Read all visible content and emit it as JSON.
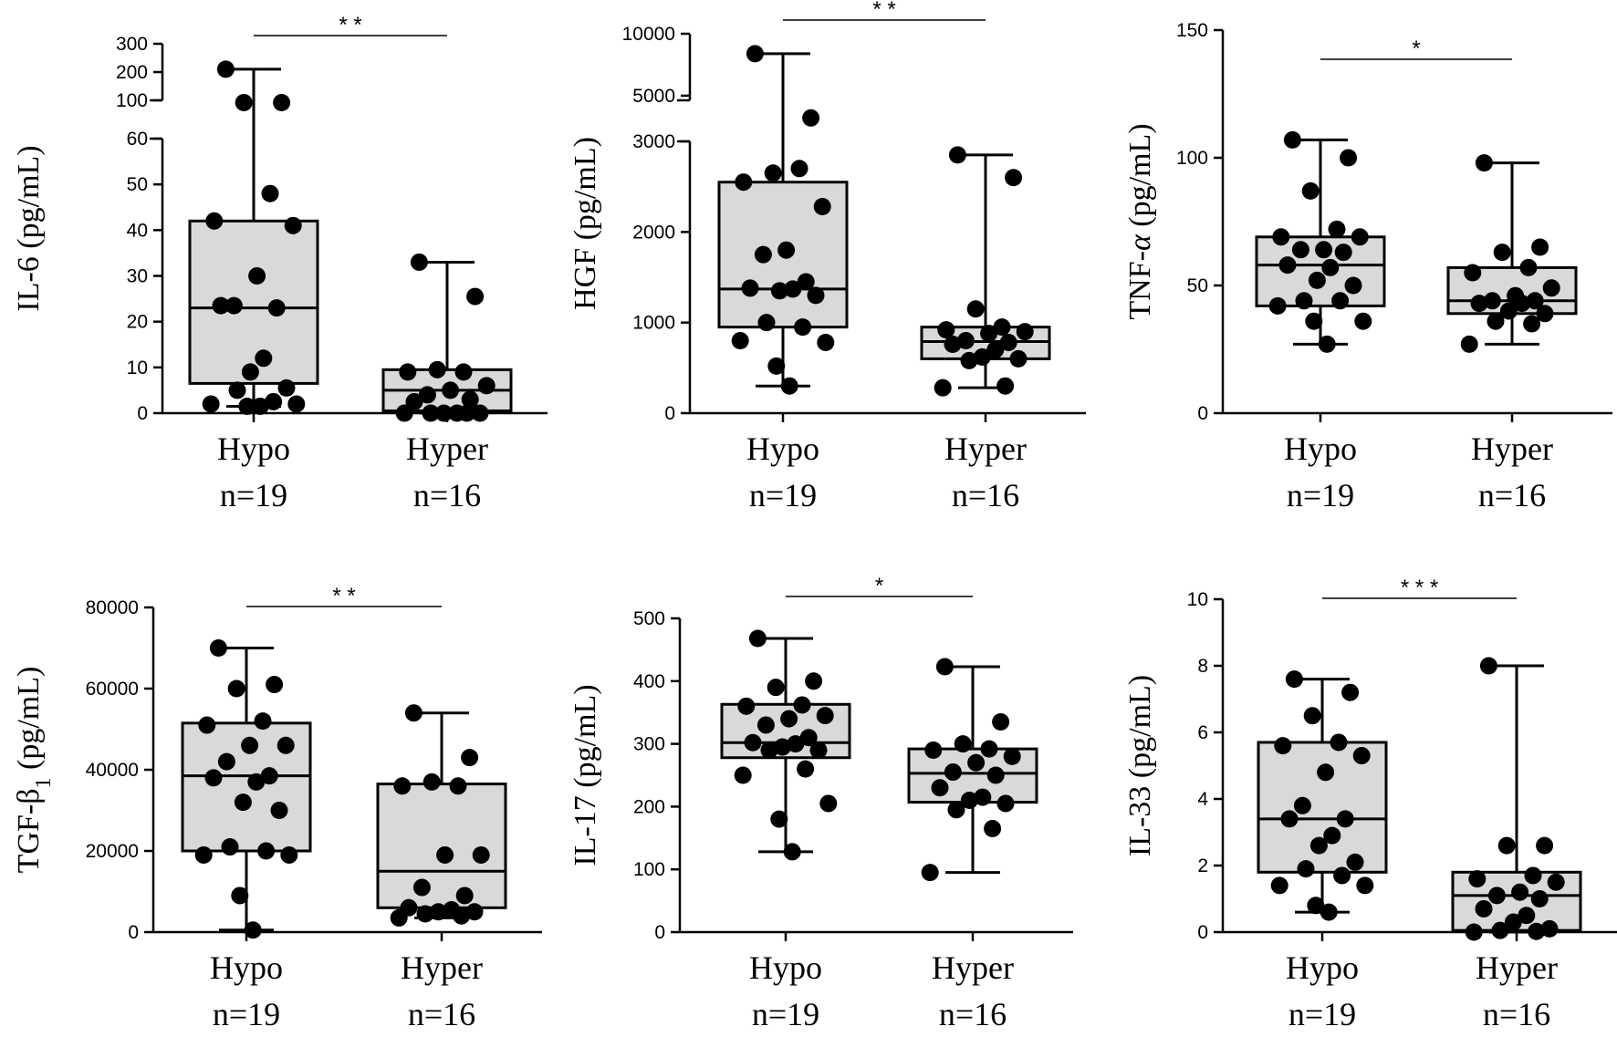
{
  "chart_data": [
    {
      "type": "box",
      "ylabel": "IL-6 (pg/mL)",
      "categories": [
        "Hypo",
        "Hyper"
      ],
      "n_labels": [
        "n=19",
        "n=16"
      ],
      "axis_break": {
        "lower_range": [
          0,
          60
        ],
        "upper_range": [
          100,
          300
        ]
      },
      "lower_ticks": [
        0,
        10,
        20,
        30,
        40,
        50,
        60
      ],
      "upper_ticks": [
        100,
        200,
        300
      ],
      "significance": "* *",
      "groups": [
        {
          "name": "Hypo",
          "min": 1.5,
          "q1": 6.5,
          "median": 23,
          "q3": 42,
          "max": 210,
          "points": [
            210,
            85,
            80,
            48,
            42,
            41,
            30,
            23.5,
            23,
            23.5,
            12,
            9,
            5.5,
            5,
            2.5,
            2,
            2,
            1.5,
            1.5
          ]
        },
        {
          "name": "Hyper",
          "min": 0,
          "q1": 0.5,
          "median": 5,
          "q3": 9.5,
          "max": 33,
          "points": [
            33,
            25.5,
            9.5,
            9,
            9,
            6,
            5,
            4,
            3,
            2.5,
            0,
            0,
            0,
            0,
            0,
            0
          ]
        }
      ]
    },
    {
      "type": "box",
      "ylabel": "HGF (pg/mL)",
      "categories": [
        "Hypo",
        "Hyper"
      ],
      "n_labels": [
        "n=19",
        "n=16"
      ],
      "axis_break": {
        "lower_range": [
          0,
          3000
        ],
        "upper_range": [
          3000,
          10000
        ]
      },
      "lower_ticks": [
        0,
        1000,
        2000,
        3000
      ],
      "upper_ticks": [
        5000,
        10000
      ],
      "significance": "* *",
      "groups": [
        {
          "name": "Hypo",
          "min": 300,
          "q1": 950,
          "median": 1370,
          "q3": 2550,
          "max": 8000,
          "points": [
            8000,
            3900,
            2650,
            2700,
            2550,
            2280,
            1800,
            1750,
            1450,
            1380,
            1370,
            1350,
            1300,
            1000,
            950,
            800,
            780,
            520,
            300
          ]
        },
        {
          "name": "Hyper",
          "min": 280,
          "q1": 600,
          "median": 790,
          "q3": 950,
          "max": 2850,
          "points": [
            2850,
            2600,
            1150,
            950,
            920,
            900,
            880,
            800,
            780,
            760,
            700,
            620,
            600,
            580,
            300,
            280
          ]
        }
      ]
    },
    {
      "type": "box",
      "ylabel": "TNF-α (pg/mL)",
      "categories": [
        "Hypo",
        "Hyper"
      ],
      "n_labels": [
        "n=19",
        "n=16"
      ],
      "ylim": [
        0,
        150
      ],
      "ticks": [
        0,
        50,
        100,
        150
      ],
      "significance": "*",
      "groups": [
        {
          "name": "Hypo",
          "min": 27,
          "q1": 42,
          "median": 58,
          "q3": 69,
          "max": 107,
          "points": [
            107,
            100,
            87,
            72,
            69,
            69,
            64,
            64,
            63,
            58,
            57,
            52,
            50,
            44,
            44,
            42,
            36,
            36,
            27
          ]
        },
        {
          "name": "Hyper",
          "min": 27,
          "q1": 39,
          "median": 44,
          "q3": 57,
          "max": 98,
          "points": [
            98,
            65,
            63,
            57,
            55,
            49,
            46,
            44,
            44,
            43,
            43,
            40,
            39,
            36,
            35,
            27
          ]
        }
      ]
    },
    {
      "type": "box",
      "ylabel": "TGF-β1 (pg/mL)",
      "categories": [
        "Hypo",
        "Hyper"
      ],
      "n_labels": [
        "n=19",
        "n=16"
      ],
      "ylim": [
        0,
        80000
      ],
      "ticks": [
        0,
        20000,
        40000,
        60000,
        80000
      ],
      "significance": "* *",
      "groups": [
        {
          "name": "Hypo",
          "min": 500,
          "q1": 20000,
          "median": 38500,
          "q3": 51500,
          "max": 70000,
          "points": [
            70000,
            61000,
            60000,
            52000,
            51000,
            46000,
            46000,
            42000,
            38500,
            38000,
            37000,
            32000,
            30000,
            21000,
            20000,
            19000,
            19000,
            9000,
            500
          ]
        },
        {
          "name": "Hyper",
          "min": 3500,
          "q1": 6000,
          "median": 15000,
          "q3": 36500,
          "max": 54000,
          "points": [
            54000,
            43000,
            37000,
            36000,
            36000,
            19000,
            19000,
            11000,
            9000,
            6000,
            5500,
            5000,
            5000,
            4500,
            4000,
            3500
          ]
        }
      ]
    },
    {
      "type": "box",
      "ylabel": "IL-17 (pg/mL)",
      "categories": [
        "Hypo",
        "Hyper"
      ],
      "n_labels": [
        "n=19",
        "n=16"
      ],
      "ylim": [
        0,
        500
      ],
      "ticks": [
        0,
        100,
        200,
        300,
        400,
        500
      ],
      "significance": "*",
      "groups": [
        {
          "name": "Hypo",
          "min": 128,
          "q1": 278,
          "median": 302,
          "q3": 363,
          "max": 468,
          "points": [
            468,
            400,
            390,
            362,
            360,
            345,
            340,
            330,
            310,
            302,
            300,
            295,
            290,
            290,
            260,
            250,
            205,
            180,
            128
          ]
        },
        {
          "name": "Hyper",
          "min": 95,
          "q1": 207,
          "median": 253,
          "q3": 292,
          "max": 423,
          "points": [
            423,
            335,
            300,
            292,
            290,
            280,
            270,
            255,
            250,
            230,
            215,
            210,
            205,
            195,
            165,
            95
          ]
        }
      ]
    },
    {
      "type": "box",
      "ylabel": "IL-33 (pg/mL)",
      "categories": [
        "Hypo",
        "Hyper"
      ],
      "n_labels": [
        "n=19",
        "n=16"
      ],
      "ylim": [
        0,
        10
      ],
      "ticks": [
        0,
        2,
        4,
        6,
        8,
        10
      ],
      "significance": "* * *",
      "groups": [
        {
          "name": "Hypo",
          "min": 0.6,
          "q1": 1.8,
          "median": 3.4,
          "q3": 5.7,
          "max": 7.6,
          "points": [
            7.6,
            7.2,
            6.5,
            5.7,
            5.6,
            5.3,
            4.8,
            3.8,
            3.4,
            3.4,
            2.9,
            2.6,
            2.1,
            1.9,
            1.7,
            1.4,
            1.4,
            0.8,
            0.6
          ]
        },
        {
          "name": "Hyper",
          "min": 0,
          "q1": 0.05,
          "median": 1.1,
          "q3": 1.8,
          "max": 8,
          "points": [
            8,
            2.6,
            2.6,
            1.7,
            1.6,
            1.5,
            1.2,
            1.1,
            1.0,
            0.7,
            0.5,
            0.3,
            0.1,
            0.05,
            0.02,
            0
          ]
        }
      ]
    }
  ]
}
